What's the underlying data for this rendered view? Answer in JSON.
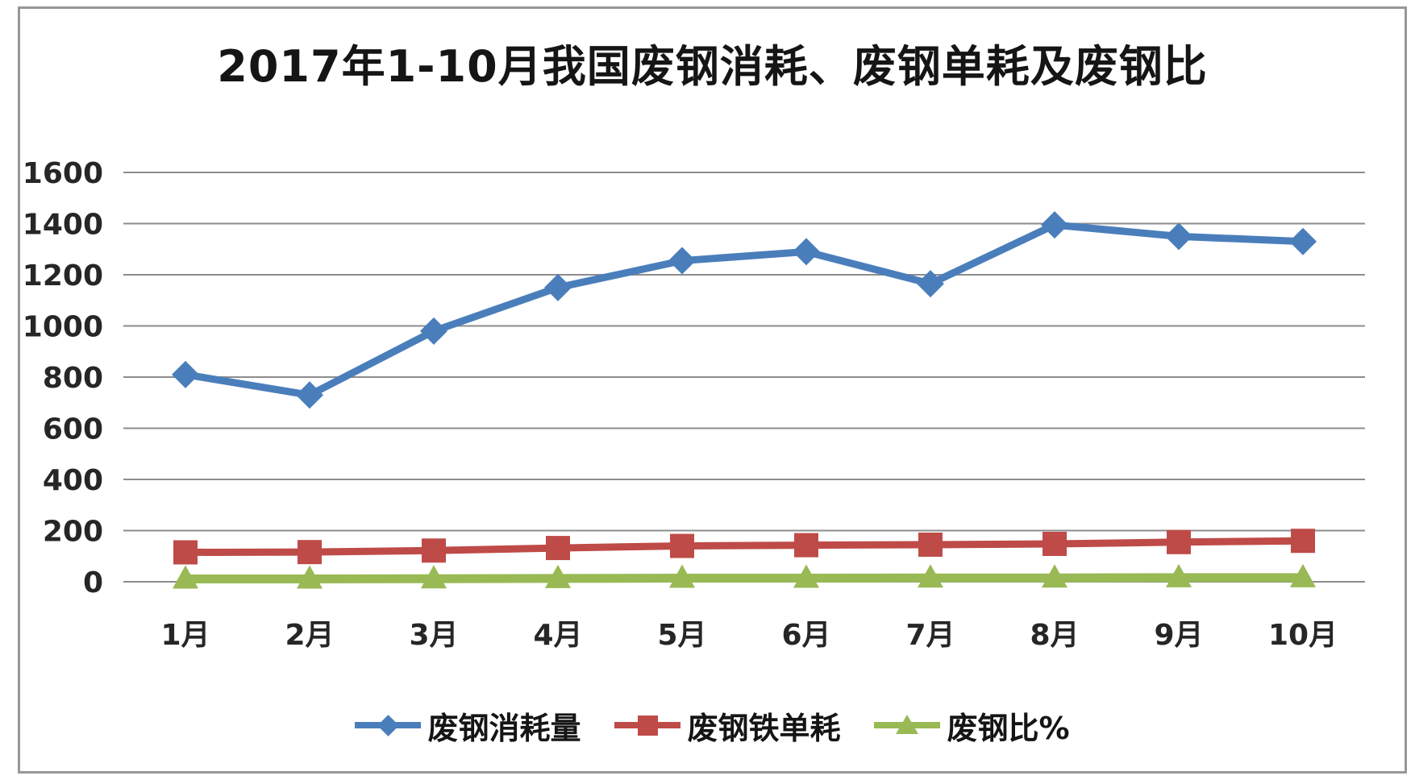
{
  "chart_data": {
    "type": "line",
    "title": "2017年1-10月我国废钢消耗、废钢单耗及废钢比",
    "categories": [
      "1月",
      "2月",
      "3月",
      "4月",
      "5月",
      "6月",
      "7月",
      "8月",
      "9月",
      "10月"
    ],
    "series": [
      {
        "name": "废钢消耗量",
        "marker": "diamond",
        "color": "#4a7ebb",
        "values": [
          810,
          730,
          980,
          1150,
          1255,
          1290,
          1165,
          1395,
          1350,
          1330
        ]
      },
      {
        "name": "废钢铁单耗",
        "marker": "square",
        "color": "#be4b48",
        "values": [
          115,
          116,
          122,
          132,
          140,
          143,
          145,
          148,
          155,
          160
        ]
      },
      {
        "name": "废钢比%",
        "marker": "triangle",
        "color": "#98b954",
        "values": [
          11,
          11,
          12,
          13,
          14,
          14,
          15,
          15,
          16,
          16
        ]
      }
    ],
    "xlabel": "",
    "ylabel": "",
    "ylim": [
      0,
      1600
    ],
    "yticks": [
      0,
      200,
      400,
      600,
      800,
      1000,
      1200,
      1400,
      1600
    ],
    "grid": "horizontal",
    "legend_position": "bottom",
    "gridline_color": "#8c8c8c",
    "text_color": "#262626",
    "border_color": "#979797"
  }
}
